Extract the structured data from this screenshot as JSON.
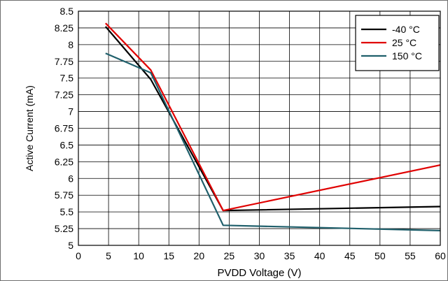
{
  "chart_data": {
    "type": "line",
    "title": "",
    "xlabel": "PVDD Voltage (V)",
    "ylabel": "Active Current (mA)",
    "xlim": [
      0,
      60
    ],
    "ylim": [
      5,
      8.5
    ],
    "x_ticks": [
      0,
      5,
      10,
      15,
      20,
      25,
      30,
      35,
      40,
      45,
      50,
      55,
      60
    ],
    "y_ticks": [
      5,
      5.25,
      5.5,
      5.75,
      6,
      6.25,
      6.5,
      6.75,
      7,
      7.25,
      7.5,
      7.75,
      8,
      8.25,
      8.5
    ],
    "x_tick_labels": [
      "0",
      "5",
      "10",
      "15",
      "20",
      "25",
      "30",
      "35",
      "40",
      "45",
      "50",
      "55",
      "60"
    ],
    "y_tick_labels": [
      "5",
      "5.25",
      "5.5",
      "5.75",
      "6",
      "6.25",
      "6.5",
      "6.75",
      "7",
      "7.25",
      "7.5",
      "7.75",
      "8",
      "8.25",
      "8.5"
    ],
    "grid": true,
    "legend_position": "top-right",
    "series": [
      {
        "name": "-40 °C",
        "color": "#000000",
        "x": [
          4.5,
          12,
          24,
          60
        ],
        "y": [
          8.27,
          7.48,
          5.52,
          5.58
        ]
      },
      {
        "name": "25 °C",
        "color": "#e00000",
        "x": [
          4.5,
          12,
          24,
          60
        ],
        "y": [
          8.32,
          7.62,
          5.52,
          6.2
        ]
      },
      {
        "name": "150 °C",
        "color": "#1f5f6b",
        "x": [
          4.5,
          12,
          24,
          60
        ],
        "y": [
          7.87,
          7.58,
          5.3,
          5.22
        ]
      }
    ]
  }
}
